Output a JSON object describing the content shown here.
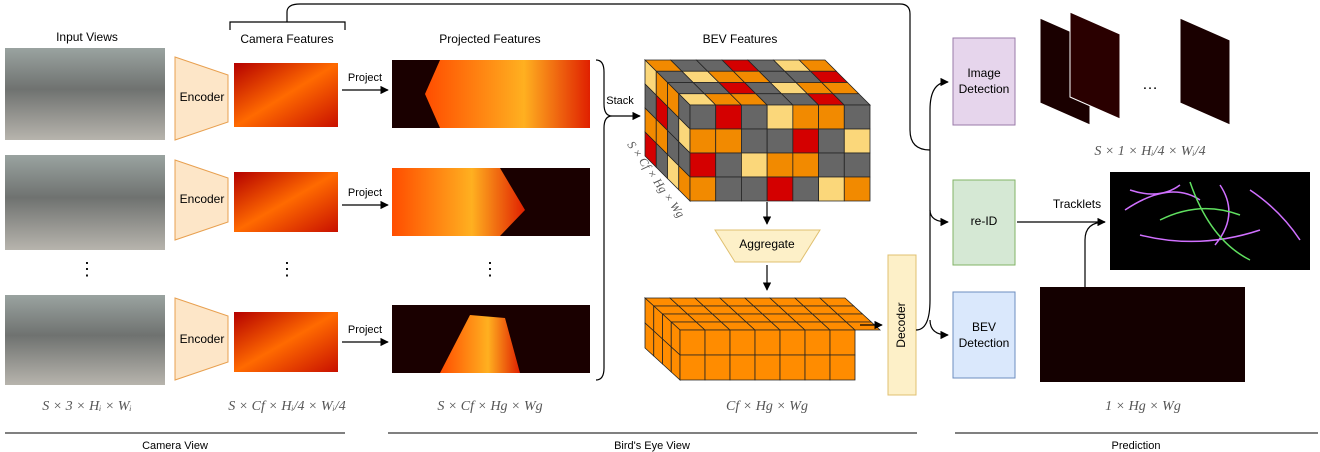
{
  "headers": {
    "input_views": "Input Views",
    "camera_features": "Camera Features",
    "projected_features": "Projected Features",
    "bev_features": "BEV Features"
  },
  "encoders": [
    "Encoder",
    "Encoder",
    "Encoder"
  ],
  "project_labels": [
    "Project",
    "Project",
    "Project"
  ],
  "ellipsis_vertical": [
    "⋮",
    "⋮",
    "⋮"
  ],
  "stack": "Stack",
  "aggregate": "Aggregate",
  "decoder": "Decoder",
  "heads": {
    "image_detection": [
      "Image",
      "Detection"
    ],
    "re_id": "re-ID",
    "bev_detection": [
      "BEV",
      "Detection"
    ]
  },
  "tracklets": "Tracklets",
  "ellipsis_horizontal": "…",
  "shapes": {
    "input": "S × 3 × Hᵢ × Wᵢ",
    "camera": "S × Cf × Hᵢ/4 × Wᵢ/4",
    "projected": "S × Cf × Hg × Wg",
    "bev_stack": "S × Cf × Hg × Wg",
    "aggregated": "Cf × Hg × Wg",
    "image_det": "S × 1 × Hᵢ/4 × Wᵢ/4",
    "bev_det": "1 × Hg × Wg"
  },
  "sections": {
    "camera_view": "Camera View",
    "birds_eye_view": "Bird's Eye View",
    "prediction": "Prediction"
  }
}
